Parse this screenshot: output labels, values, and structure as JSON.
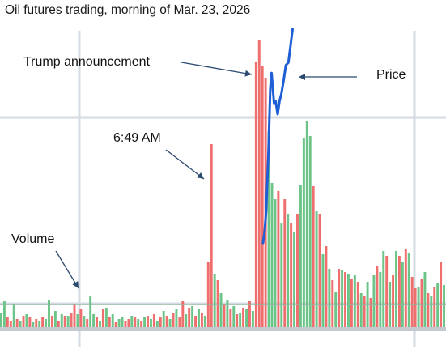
{
  "chart_data": {
    "type": "bar",
    "title": "Oil futures trading, morning of Mar. 23, 2026",
    "xlabel": "",
    "ylabel": "",
    "colors": {
      "up": "#6cc488",
      "down": "#ef6f6f",
      "price_line": "#1f5fd6",
      "grid": "#d4dbe2",
      "annotation_arrow": "#2b4a6f"
    },
    "grid": true,
    "volume": [
      20,
      34,
      14,
      10,
      30,
      12,
      10,
      16,
      18,
      14,
      8,
      12,
      10,
      14,
      12,
      36,
      16,
      22,
      10,
      18,
      16,
      16,
      20,
      30,
      18,
      24,
      16,
      12,
      40,
      18,
      14,
      10,
      24,
      26,
      14,
      18,
      8,
      12,
      14,
      10,
      12,
      16,
      14,
      12,
      10,
      14,
      16,
      12,
      18,
      10,
      14,
      22,
      16,
      12,
      20,
      24,
      14,
      34,
      18,
      26,
      28,
      16,
      24,
      20,
      16,
      82,
      228,
      68,
      60,
      44,
      30,
      36,
      24,
      28,
      18,
      20,
      26,
      24,
      34,
      22,
      330,
      356,
      324,
      310,
      244,
      180,
      160,
      170,
      130,
      160,
      142,
      130,
      120,
      142,
      178,
      236,
      256,
      238,
      176,
      146,
      142,
      92,
      102,
      74,
      60,
      46,
      74,
      72,
      70,
      68,
      62,
      66,
      58,
      44,
      40,
      58,
      38,
      66,
      78,
      70,
      96,
      90,
      58,
      66,
      96,
      90,
      82,
      98,
      94,
      64,
      50,
      52,
      62,
      70,
      44,
      40,
      52,
      56,
      82,
      54
    ],
    "direction": [
      "up",
      "up",
      "down",
      "down",
      "up",
      "down",
      "up",
      "down",
      "up",
      "down",
      "up",
      "down",
      "up",
      "down",
      "up",
      "up",
      "down",
      "up",
      "down",
      "up",
      "down",
      "up",
      "down",
      "down",
      "up",
      "down",
      "up",
      "down",
      "up",
      "up",
      "down",
      "up",
      "down",
      "up",
      "down",
      "up",
      "down",
      "up",
      "up",
      "down",
      "down",
      "up",
      "down",
      "up",
      "down",
      "up",
      "down",
      "up",
      "down",
      "up",
      "down",
      "up",
      "down",
      "up",
      "down",
      "up",
      "down",
      "down",
      "up",
      "down",
      "up",
      "down",
      "up",
      "down",
      "up",
      "down",
      "down",
      "up",
      "down",
      "up",
      "down",
      "up",
      "down",
      "up",
      "down",
      "up",
      "down",
      "up",
      "down",
      "up",
      "down",
      "down",
      "down",
      "down",
      "up",
      "up",
      "up",
      "down",
      "up",
      "down",
      "up",
      "down",
      "up",
      "down",
      "up",
      "up",
      "up",
      "up",
      "down",
      "up",
      "down",
      "up",
      "down",
      "up",
      "down",
      "up",
      "down",
      "up",
      "down",
      "up",
      "down",
      "up",
      "down",
      "up",
      "down",
      "up",
      "down",
      "up",
      "down",
      "up",
      "up",
      "down",
      "up",
      "down",
      "up",
      "down",
      "up",
      "down",
      "up",
      "down",
      "down",
      "up",
      "down",
      "up",
      "down",
      "up",
      "down",
      "up",
      "down",
      "up"
    ],
    "price": [
      [
        80,
        0
      ],
      [
        80.5,
        20
      ],
      [
        81,
        60
      ],
      [
        81.3,
        110
      ],
      [
        81.7,
        170
      ],
      [
        82,
        235
      ],
      [
        82.3,
        300
      ],
      [
        82.7,
        330
      ],
      [
        83.1,
        300
      ],
      [
        83.5,
        270
      ],
      [
        84,
        275
      ],
      [
        84.6,
        250
      ],
      [
        85.2,
        275
      ],
      [
        85.8,
        290
      ],
      [
        86.5,
        315
      ],
      [
        87.2,
        345
      ],
      [
        88,
        350
      ],
      [
        88.6,
        380
      ],
      [
        89.3,
        415
      ]
    ],
    "annotations": [
      {
        "text": "Trump announcement"
      },
      {
        "text": "Price"
      },
      {
        "text": "6:49 AM"
      },
      {
        "text": "Volume"
      }
    ]
  }
}
